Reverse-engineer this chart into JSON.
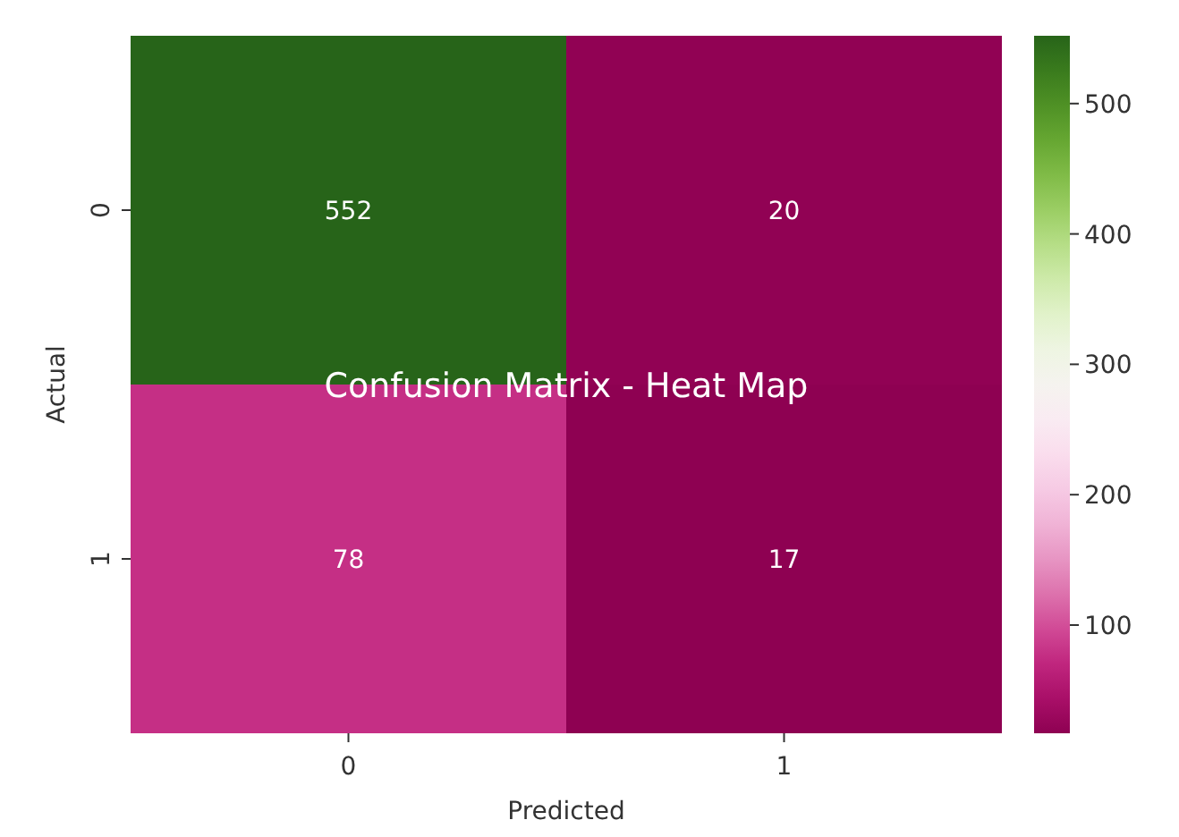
{
  "chart_data": {
    "type": "heatmap",
    "title": "Confusion Matrix - Heat Map",
    "xlabel": "Predicted",
    "ylabel": "Actual",
    "categories": [
      "0",
      "1"
    ],
    "y_categories": [
      "0",
      "1"
    ],
    "cells": [
      [
        552,
        20
      ],
      [
        78,
        17
      ]
    ],
    "clim": [
      17,
      552
    ],
    "cticks": [
      100,
      200,
      300,
      400,
      500
    ],
    "data_labels": true
  }
}
